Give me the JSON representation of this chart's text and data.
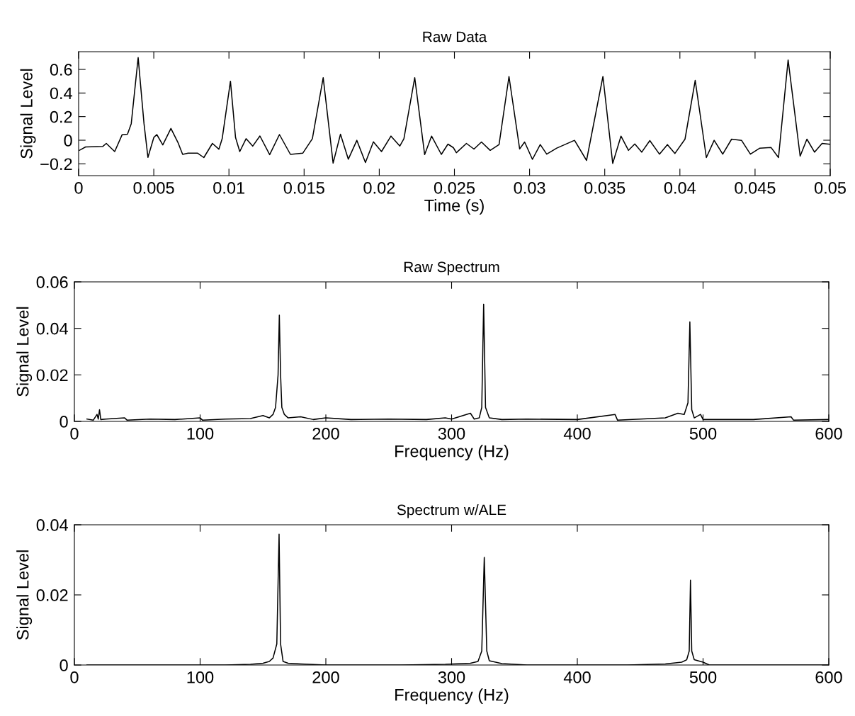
{
  "chart_data": [
    {
      "type": "line",
      "title": "Raw Data",
      "xlabel": "Time (s)",
      "ylabel": "Signal Level",
      "color": "#000000",
      "x": [
        5e-05,
        0.00046,
        0.0016,
        0.00184,
        0.0024,
        0.00289,
        0.00325,
        0.0035,
        0.00396,
        0.00435,
        0.00461,
        0.005,
        0.0052,
        0.0056,
        0.00614,
        0.0066,
        0.00692,
        0.00728,
        0.00792,
        0.00833,
        0.0089,
        0.00933,
        0.00955,
        0.0101,
        0.01044,
        0.01072,
        0.01114,
        0.01158,
        0.01206,
        0.01271,
        0.01336,
        0.01409,
        0.01491,
        0.01555,
        0.01627,
        0.01693,
        0.01742,
        0.01794,
        0.01851,
        0.01908,
        0.01961,
        0.02015,
        0.02078,
        0.02137,
        0.02164,
        0.02236,
        0.02302,
        0.02348,
        0.02413,
        0.02457,
        0.02493,
        0.02513,
        0.0258,
        0.0263,
        0.0268,
        0.02738,
        0.02797,
        0.02863,
        0.02934,
        0.02967,
        0.03019,
        0.03071,
        0.03114,
        0.03181,
        0.03299,
        0.03379,
        0.03488,
        0.03553,
        0.03608,
        0.03658,
        0.037,
        0.03746,
        0.038,
        0.03864,
        0.03917,
        0.03967,
        0.04034,
        0.04102,
        0.04176,
        0.04228,
        0.04285,
        0.04344,
        0.0441,
        0.04469,
        0.04532,
        0.04606,
        0.04656,
        0.0472,
        0.048,
        0.04845,
        0.04896,
        0.04946,
        0.05
      ],
      "values": [
        -0.086,
        -0.057,
        -0.053,
        -0.027,
        -0.096,
        0.046,
        0.051,
        0.14,
        0.7,
        0.14,
        -0.145,
        0.023,
        0.048,
        -0.04,
        0.1,
        -0.017,
        -0.12,
        -0.11,
        -0.11,
        -0.147,
        -0.027,
        -0.076,
        0.013,
        0.5,
        0.022,
        -0.096,
        0.013,
        -0.05,
        0.036,
        -0.122,
        0.048,
        -0.12,
        -0.11,
        0.013,
        0.53,
        -0.194,
        0.051,
        -0.161,
        -0.001,
        -0.189,
        -0.014,
        -0.096,
        0.035,
        -0.049,
        0.013,
        0.53,
        -0.122,
        0.035,
        -0.12,
        -0.033,
        -0.063,
        -0.106,
        -0.027,
        -0.075,
        -0.015,
        -0.086,
        -0.037,
        0.54,
        -0.074,
        -0.015,
        -0.162,
        -0.037,
        -0.118,
        -0.067,
        -0.001,
        -0.171,
        0.54,
        -0.196,
        0.035,
        -0.086,
        -0.032,
        -0.101,
        -0.003,
        -0.118,
        -0.037,
        -0.112,
        0.009,
        0.507,
        -0.147,
        -0.001,
        -0.118,
        0.009,
        -0.001,
        -0.118,
        -0.067,
        -0.061,
        -0.147,
        0.68,
        -0.135,
        0.009,
        -0.101,
        -0.027,
        -0.035
      ],
      "xlim": [
        0,
        0.05
      ],
      "ylim": [
        -0.3,
        0.75
      ],
      "xticks": [
        0,
        0.005,
        0.01,
        0.015,
        0.02,
        0.025,
        0.03,
        0.035,
        0.04,
        0.045,
        0.05
      ],
      "yticks": [
        {
          "value": -0.2,
          "label": "−0.2"
        },
        0,
        0.2,
        0.4,
        0.6
      ],
      "grid": false
    },
    {
      "type": "line",
      "title": "Raw Spectrum",
      "xlabel": "Frequency (Hz)",
      "ylabel": "Signal Level",
      "color": "#000000",
      "x": [
        10,
        15,
        18,
        19,
        20,
        21,
        25,
        40,
        42,
        60,
        80,
        100,
        102,
        120,
        140,
        150,
        155,
        158,
        160,
        162,
        163,
        164,
        165,
        167,
        170,
        180,
        190,
        200,
        220,
        250,
        280,
        295,
        300,
        315,
        318,
        322,
        324,
        325.5,
        327,
        330,
        340,
        360,
        400,
        430,
        432,
        450,
        470,
        480,
        485,
        488,
        489.5,
        491,
        493,
        498,
        500,
        540,
        570,
        572,
        600
      ],
      "values": [
        0.001,
        0.0005,
        0.003,
        0.001,
        0.005,
        0.0008,
        0.001,
        0.0015,
        0.0005,
        0.001,
        0.0008,
        0.0015,
        0.0005,
        0.001,
        0.0012,
        0.0025,
        0.0015,
        0.003,
        0.006,
        0.02,
        0.0457,
        0.02,
        0.006,
        0.003,
        0.0015,
        0.002,
        0.0008,
        0.0015,
        0.0008,
        0.001,
        0.0008,
        0.0015,
        0.001,
        0.0035,
        0.001,
        0.0015,
        0.006,
        0.0504,
        0.006,
        0.0015,
        0.0008,
        0.001,
        0.0008,
        0.003,
        0.0005,
        0.001,
        0.0015,
        0.0035,
        0.003,
        0.008,
        0.0428,
        0.005,
        0.0015,
        0.003,
        0.0008,
        0.0008,
        0.002,
        0.0005,
        0.0008
      ],
      "xlim": [
        0,
        600
      ],
      "ylim": [
        0,
        0.06
      ],
      "xticks": [
        0,
        100,
        200,
        300,
        400,
        500,
        600
      ],
      "yticks": [
        0,
        0.02,
        0.04,
        0.06
      ],
      "grid": false
    },
    {
      "type": "line",
      "title": "Spectrum w/ALE",
      "xlabel": "Frequency (Hz)",
      "ylabel": "Signal Level",
      "color": "#000000",
      "x": [
        10,
        120,
        140,
        150,
        155,
        158,
        161,
        162.8,
        164,
        166,
        170,
        180,
        200,
        260,
        295,
        315,
        321,
        324,
        326,
        328,
        330,
        340,
        360,
        440,
        470,
        483,
        487,
        489,
        490,
        491,
        493,
        500,
        505,
        600
      ],
      "values": [
        0,
        0,
        0.0002,
        0.0005,
        0.001,
        0.002,
        0.006,
        0.0373,
        0.006,
        0.001,
        0.0005,
        0.0003,
        0,
        0,
        0.0002,
        0.0005,
        0.001,
        0.004,
        0.0307,
        0.004,
        0.0012,
        0.0004,
        0,
        0,
        0.0003,
        0.0008,
        0.0015,
        0.004,
        0.0242,
        0.004,
        0.0015,
        0.0008,
        0,
        0
      ],
      "xlim": [
        0,
        600
      ],
      "ylim": [
        0,
        0.04
      ],
      "xticks": [
        0,
        100,
        200,
        300,
        400,
        500,
        600
      ],
      "yticks": [
        0,
        0.02,
        0.04
      ],
      "grid": false
    }
  ]
}
